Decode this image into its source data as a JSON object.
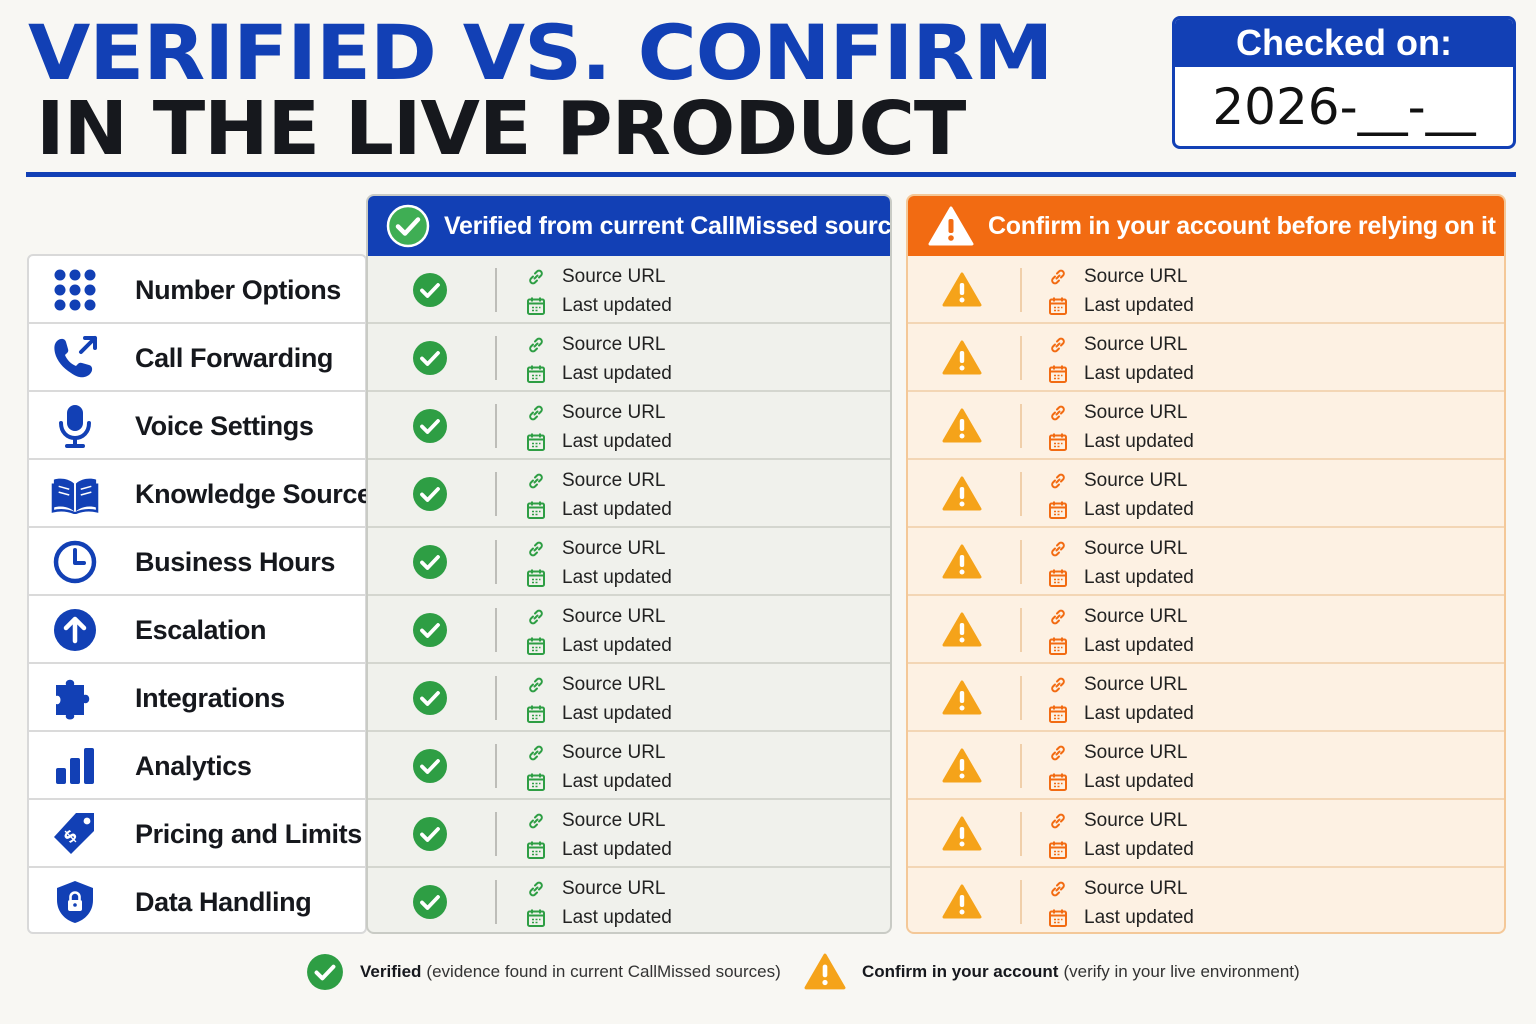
{
  "title": {
    "line1": "VERIFIED VS. CONFIRM",
    "line2": "IN THE LIVE PRODUCT"
  },
  "checked_on": {
    "label": "Checked on:",
    "value": "2026-__-__"
  },
  "columns": {
    "verified": {
      "header": "Verified from current CallMissed sources",
      "color": "#1240b5"
    },
    "confirm": {
      "header": "Confirm in your account before relying on it",
      "color": "#f26b12"
    }
  },
  "row_fields": {
    "source": "Source URL",
    "updated": "Last updated"
  },
  "features": [
    {
      "label": "Number Options",
      "icon": "keypad-icon"
    },
    {
      "label": "Call Forwarding",
      "icon": "phone-forward-icon"
    },
    {
      "label": "Voice Settings",
      "icon": "microphone-icon"
    },
    {
      "label": "Knowledge Sources",
      "icon": "book-icon"
    },
    {
      "label": "Business Hours",
      "icon": "clock-icon"
    },
    {
      "label": "Escalation",
      "icon": "arrow-up-circle-icon"
    },
    {
      "label": "Integrations",
      "icon": "puzzle-icon"
    },
    {
      "label": "Analytics",
      "icon": "bar-chart-icon"
    },
    {
      "label": "Pricing and Limits",
      "icon": "price-tag-icon"
    },
    {
      "label": "Data Handling",
      "icon": "shield-lock-icon"
    }
  ],
  "legend": {
    "verified_bold": "Verified",
    "verified_desc": "(evidence found in current CallMissed sources)",
    "confirm_bold": "Confirm in your account",
    "confirm_desc": "(verify in your live environment)"
  },
  "colors": {
    "brand_blue": "#1240b5",
    "check_green": "#2e9e44",
    "warn_orange": "#f26b12",
    "warn_yellow": "#f5a31a"
  }
}
